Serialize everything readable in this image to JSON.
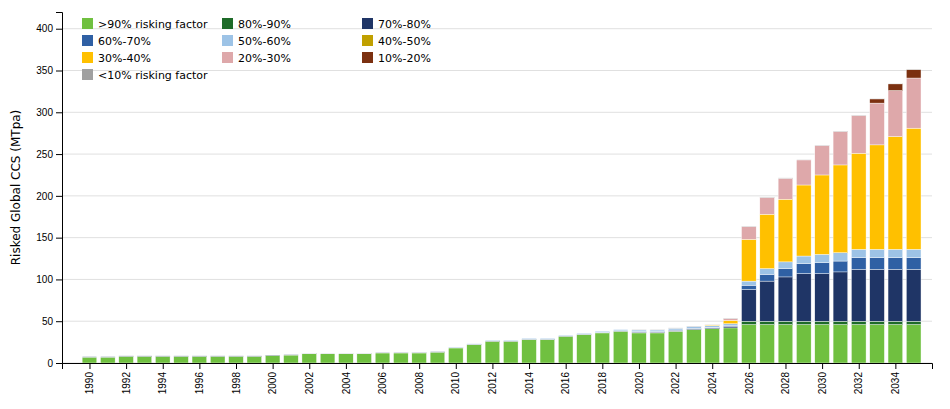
{
  "chart_data": {
    "type": "bar",
    "stacked": true,
    "ylabel": "Risked Global CCS (MTpa)",
    "grid": true,
    "legend": "upper left",
    "x": [
      1990,
      1991,
      1992,
      1993,
      1994,
      1995,
      1996,
      1997,
      1998,
      1999,
      2000,
      2001,
      2002,
      2003,
      2004,
      2005,
      2006,
      2007,
      2008,
      2009,
      2010,
      2011,
      2012,
      2013,
      2014,
      2015,
      2016,
      2017,
      2018,
      2019,
      2020,
      2021,
      2022,
      2023,
      2024,
      2025,
      2026,
      2027,
      2028,
      2029,
      2030,
      2031,
      2032,
      2033,
      2034,
      2035
    ],
    "xlim": [
      1988.5,
      2036.0
    ],
    "xticks": [
      1990,
      1992,
      1994,
      1996,
      1998,
      2000,
      2002,
      2004,
      2006,
      2008,
      2010,
      2012,
      2014,
      2016,
      2018,
      2020,
      2022,
      2024,
      2026,
      2028,
      2030,
      2032,
      2034
    ],
    "ylim": [
      0,
      420
    ],
    "yticks": [
      0,
      50,
      100,
      150,
      200,
      250,
      300,
      350,
      400
    ],
    "series": [
      {
        "name": ">90% risking factor",
        "color": "#70c040",
        "values": [
          7.0,
          7.0,
          8.0,
          8.0,
          8.0,
          8.0,
          8.0,
          8.0,
          8.0,
          8.0,
          9.0,
          9.5,
          11,
          11,
          11,
          11,
          12,
          12,
          12,
          13,
          18,
          22,
          26,
          26,
          28,
          28,
          32,
          34,
          36,
          38,
          36,
          36,
          38,
          40,
          41,
          42,
          46,
          46,
          46,
          46,
          46,
          46,
          46,
          46,
          46,
          46
        ]
      },
      {
        "name": "80%-90%",
        "color": "#1e6b29",
        "values": [
          0,
          0,
          0,
          0,
          0,
          0,
          0,
          0,
          0,
          0,
          0,
          0,
          0,
          0,
          0,
          0,
          0,
          0,
          0,
          0,
          0,
          0,
          0,
          0,
          0,
          0,
          0,
          0,
          0,
          0,
          0,
          0,
          0,
          0,
          0,
          0,
          4,
          4,
          4,
          4,
          4,
          4,
          4,
          4,
          4,
          4
        ]
      },
      {
        "name": "70%-80%",
        "color": "#1f3566",
        "values": [
          0.5,
          0.5,
          0.5,
          0.5,
          0.5,
          0.5,
          0.5,
          0.5,
          0.5,
          0.5,
          0.5,
          0.5,
          0.5,
          0.5,
          0.5,
          0.5,
          0.5,
          0.5,
          0.5,
          0.5,
          0.5,
          0.5,
          0.5,
          0.5,
          0.5,
          0.5,
          0.5,
          0.5,
          0.5,
          0.5,
          1.0,
          1.0,
          1.0,
          1.0,
          1.0,
          2.0,
          38,
          48,
          53,
          57,
          57,
          59,
          62,
          62,
          62,
          62
        ]
      },
      {
        "name": "60%-70%",
        "color": "#2f60a4",
        "values": [
          0,
          0,
          0,
          0,
          0,
          0,
          0,
          0,
          0,
          0,
          0,
          0,
          0,
          0,
          0,
          0,
          0,
          0,
          0,
          0,
          0,
          0,
          0,
          0,
          0,
          0,
          0,
          0,
          0,
          0,
          0.5,
          0.5,
          0.5,
          0.5,
          0.5,
          1.0,
          5,
          8,
          10,
          12,
          13,
          13,
          14,
          14,
          14,
          14
        ]
      },
      {
        "name": "50%-60%",
        "color": "#9dc3e6",
        "values": [
          0,
          0,
          0,
          0,
          0,
          0,
          0,
          0,
          0,
          0,
          0,
          0,
          0,
          0,
          0,
          0,
          0,
          0,
          0,
          0,
          0.5,
          0.5,
          1.0,
          1.0,
          1.0,
          1.0,
          1.0,
          1.0,
          1.5,
          1.5,
          2.0,
          2.0,
          2.0,
          2.0,
          2.0,
          2.0,
          5,
          7,
          8,
          9,
          10,
          10,
          10,
          10,
          10,
          10
        ]
      },
      {
        "name": "40%-50%",
        "color": "#c0a000",
        "values": [
          0,
          0,
          0,
          0,
          0,
          0,
          0,
          0,
          0,
          0,
          0,
          0,
          0,
          0,
          0,
          0,
          0,
          0,
          0,
          0,
          0,
          0,
          0,
          0,
          0,
          0,
          0,
          0,
          0,
          0,
          0,
          0,
          0,
          0,
          0,
          0,
          0,
          0,
          0,
          0,
          0,
          0,
          0,
          0,
          0,
          0
        ]
      },
      {
        "name": "30%-40%",
        "color": "#ffc000",
        "values": [
          0,
          0,
          0,
          0,
          0,
          0,
          0,
          0,
          0,
          0,
          0,
          0,
          0,
          0,
          0,
          0,
          0,
          0,
          0,
          0,
          0,
          0,
          0,
          0,
          0,
          0,
          0,
          0,
          0,
          0,
          0,
          0,
          0,
          0,
          1,
          4,
          50,
          65,
          75,
          85,
          95,
          105,
          115,
          125,
          135,
          145
        ]
      },
      {
        "name": "20%-30%",
        "color": "#dea8aa",
        "values": [
          0,
          0,
          0,
          0,
          0,
          0,
          0,
          0,
          0,
          0,
          0,
          0,
          0,
          0,
          0,
          0,
          0,
          0,
          0,
          0,
          0,
          0,
          0,
          0,
          0,
          0,
          0,
          0,
          0,
          0,
          0,
          0,
          0,
          0,
          0,
          2,
          15,
          20,
          25,
          30,
          35,
          40,
          45,
          50,
          55,
          60
        ]
      },
      {
        "name": "10%-20%",
        "color": "#7b3010",
        "values": [
          0,
          0,
          0,
          0,
          0,
          0,
          0,
          0,
          0,
          0,
          0,
          0,
          0,
          0,
          0,
          0,
          0,
          0,
          0,
          0,
          0,
          0,
          0,
          0,
          0,
          0,
          0,
          0,
          0,
          0,
          0,
          0,
          0,
          0,
          0,
          0,
          0,
          0,
          0,
          0,
          0,
          0,
          0,
          5,
          8,
          10
        ]
      },
      {
        "name": "<10% risking factor",
        "color": "#a0a0a0",
        "values": [
          0,
          0,
          0,
          0,
          0,
          0,
          0,
          0,
          0,
          0,
          0,
          0,
          0,
          0,
          0,
          0,
          0,
          0,
          0,
          0,
          0,
          0,
          0,
          0,
          0,
          0,
          0,
          0,
          0,
          0,
          0.5,
          0.5,
          0.5,
          0.5,
          0.5,
          0.5,
          0.5,
          0.5,
          0.5,
          0.5,
          0.5,
          0.5,
          0.5,
          0.5,
          0.5,
          0.5
        ]
      }
    ]
  }
}
